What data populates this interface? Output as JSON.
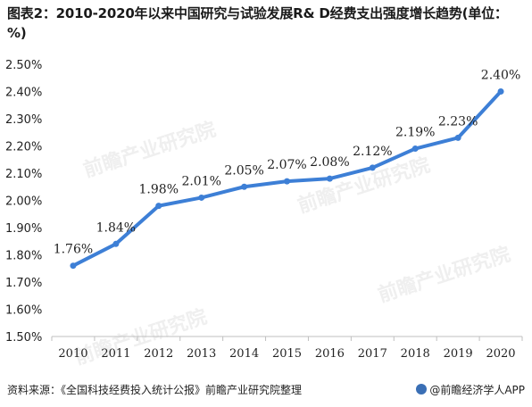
{
  "title": "图表2：2010-2020年以来中国研究与试验发展R& D经费支出强度增长趋势(单位：%)",
  "watermark": "前瞻产业研究院",
  "source": "资料来源：《全国科技经费投入统计公报》前瞻产业研究院整理",
  "brand": "@前瞻经济学人APP",
  "colors": {
    "line": "#3d7fd6",
    "text": "#222222",
    "axis": "#bfbfbf"
  },
  "chart_data": {
    "type": "line",
    "title": "图表2：2010-2020年以来中国研究与试验发展R& D经费支出强度增长趋势(单位：%)",
    "xlabel": "",
    "ylabel": "",
    "categories": [
      "2010",
      "2011",
      "2012",
      "2013",
      "2014",
      "2015",
      "2016",
      "2017",
      "2018",
      "2019",
      "2020"
    ],
    "series": [
      {
        "values": [
          1.76,
          1.84,
          1.98,
          2.01,
          2.05,
          2.07,
          2.08,
          2.12,
          2.19,
          2.23,
          2.4
        ],
        "labels": [
          "1.76%",
          "1.84%",
          "1.98%",
          "2.01%",
          "2.05%",
          "2.07%",
          "2.08%",
          "2.12%",
          "2.19%",
          "2.23%",
          "2.40%"
        ]
      }
    ],
    "ylim": [
      1.5,
      2.5
    ],
    "yticks": [
      "1.50%",
      "1.60%",
      "1.70%",
      "1.80%",
      "1.90%",
      "2.00%",
      "2.10%",
      "2.20%",
      "2.30%",
      "2.40%",
      "2.50%"
    ],
    "grid": false,
    "legend": "none"
  }
}
